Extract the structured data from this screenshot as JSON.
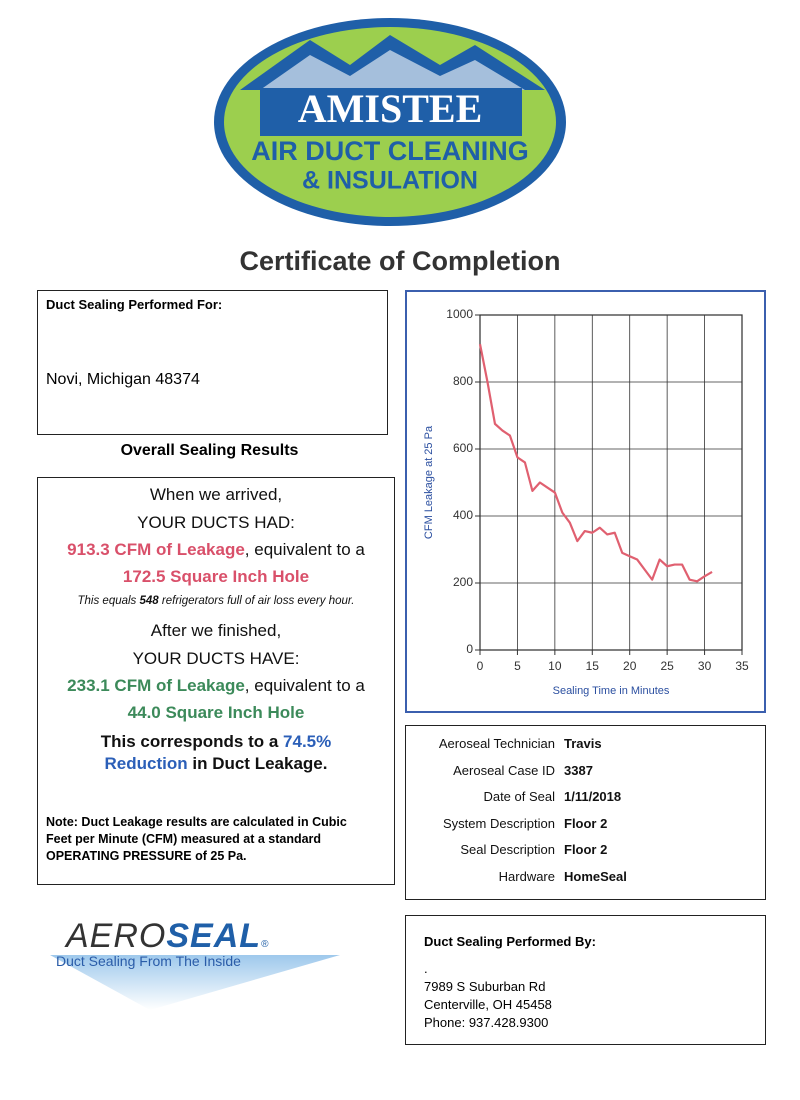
{
  "logo": {
    "name": "AMISTEE",
    "line1": "AIR DUCT CLEANING",
    "line2": "& INSULATION"
  },
  "title": "Certificate of Completion",
  "performed_for": {
    "label": "Duct Sealing Performed For:",
    "address": "Novi, Michigan 48374"
  },
  "results": {
    "heading": "Overall Sealing Results",
    "arrived": "When we arrived,",
    "had": "YOUR DUCTS HAD:",
    "before_cfm": "913.3 CFM of Leakage",
    "before_suffix": ", equivalent to a",
    "before_hole": "172.5 Square Inch Hole",
    "equals_prefix": "This equals ",
    "equals_number": "548",
    "equals_suffix": " refrigerators full of air loss every hour.",
    "finished": "After we finished,",
    "have": "YOUR DUCTS HAVE:",
    "after_cfm": "233.1 CFM of Leakage",
    "after_suffix": ", equivalent to a",
    "after_hole": "44.0 Square Inch Hole",
    "reduction_prefix": "This corresponds to a ",
    "reduction": "74.5% Reduction",
    "reduction_suffix": " in Duct Leakage.",
    "note": "Note: Duct Leakage results are calculated in Cubic Feet per Minute (CFM) measured at a standard OPERATING PRESSURE of 25 Pa."
  },
  "chart_data": {
    "type": "line",
    "x_label": "Sealing Time in Minutes",
    "y_label": "CFM Leakage at 25 Pa",
    "x": [
      0,
      1,
      2,
      3,
      4,
      5,
      6,
      7,
      8,
      9,
      10,
      11,
      12,
      13,
      14,
      15,
      16,
      17,
      18,
      19,
      20,
      21,
      22,
      23,
      24,
      25,
      26,
      27,
      28,
      29,
      30,
      31
    ],
    "values": [
      913,
      800,
      675,
      655,
      640,
      575,
      560,
      475,
      500,
      485,
      470,
      410,
      380,
      325,
      355,
      350,
      365,
      345,
      350,
      290,
      280,
      270,
      240,
      210,
      270,
      250,
      255,
      255,
      210,
      205,
      220,
      233.1
    ],
    "color": "#e06070",
    "xlim": [
      0,
      35
    ],
    "ylim": [
      0,
      1000
    ],
    "xticks": [
      0,
      5,
      10,
      15,
      20,
      25,
      30,
      35
    ],
    "yticks": [
      0,
      200,
      400,
      600,
      800,
      1000
    ],
    "grid": true
  },
  "details": {
    "rows": [
      {
        "label": "Aeroseal Technician",
        "value": "Travis"
      },
      {
        "label": "Aeroseal Case ID",
        "value": "3387"
      },
      {
        "label": "Date of Seal",
        "value": "1/11/2018"
      },
      {
        "label": "System Description",
        "value": "Floor 2"
      },
      {
        "label": "Seal Description",
        "value": "Floor 2"
      },
      {
        "label": "Hardware",
        "value": "HomeSeal"
      }
    ]
  },
  "aeroseal": {
    "aero": "AERO",
    "seal": "SEAL",
    "mark": "®",
    "tagline": "Duct Sealing From The Inside"
  },
  "performed_by": {
    "label": "Duct Sealing Performed By:",
    "name": ".",
    "street": "7989 S Suburban Rd",
    "city": "Centerville, OH 45458",
    "phone": "Phone: 937.428.9300"
  }
}
